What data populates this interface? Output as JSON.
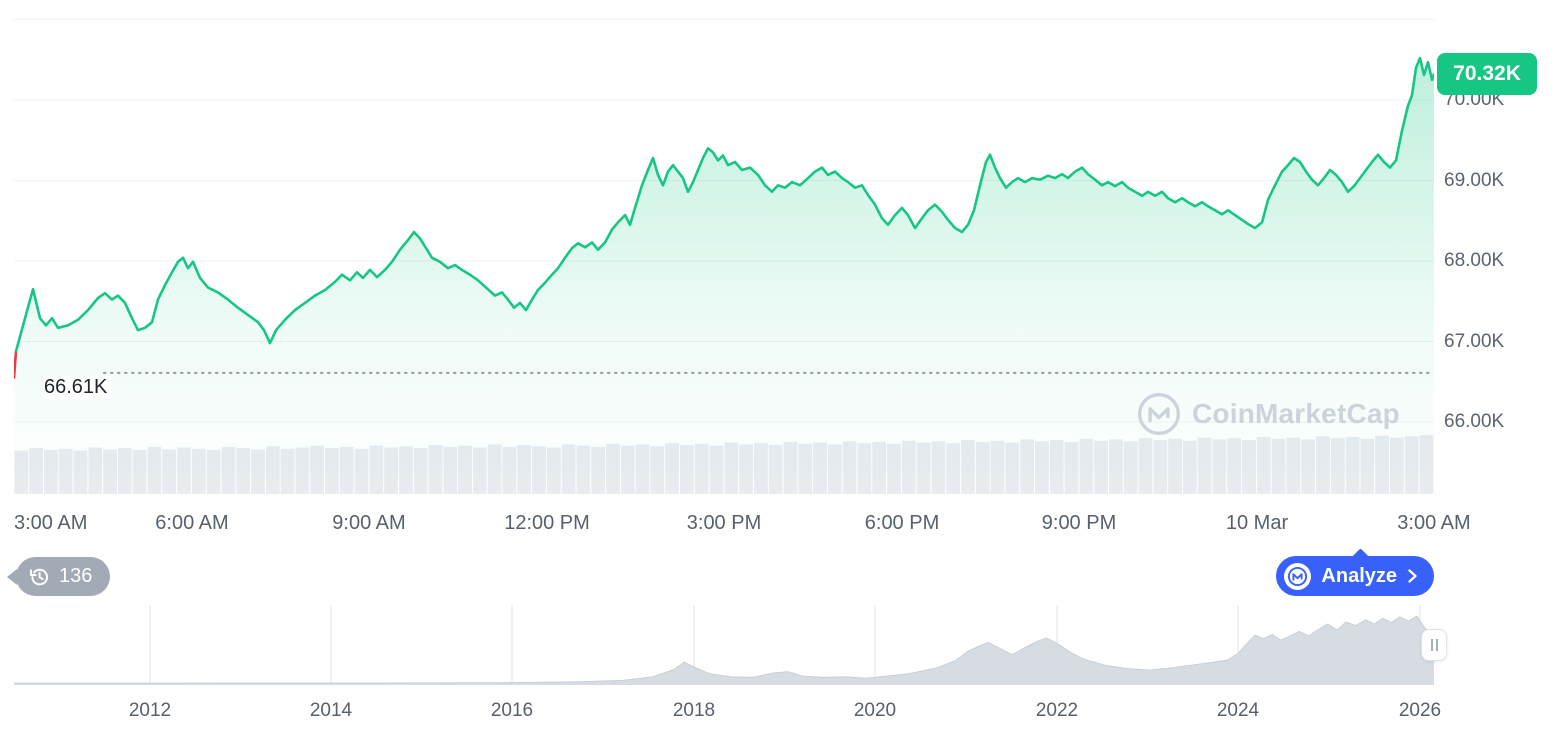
{
  "watermark": {
    "text": "CoinMarketCap"
  },
  "toolbar": {
    "history_count": "136",
    "analyze_label": "Analyze"
  },
  "colors": {
    "accent_green": "#16c784",
    "accent_blue": "#3861fb",
    "accent_red": "#ea3943",
    "volume_gray": "#e8ebef",
    "mini_fill": "#d7dce2",
    "mini_stroke": "#c8cfd7",
    "grid": "#eff2f5",
    "dotted_line": "#8f97a0",
    "axis_text": "#57606d"
  },
  "chart_data": {
    "type": "area",
    "title": "",
    "current_price_label": "70.32K",
    "current_price": 70.32,
    "open_price_label": "66.61K",
    "open_price": 66.61,
    "ylim": [
      65.07,
      71.07
    ],
    "y_ticks": [
      {
        "label": "70.00K",
        "value": 70.0
      },
      {
        "label": "69.00K",
        "value": 69.0
      },
      {
        "label": "68.00K",
        "value": 68.0
      },
      {
        "label": "67.00K",
        "value": 67.0
      },
      {
        "label": "66.00K",
        "value": 66.0
      }
    ],
    "grid_values": [
      71.0,
      70.0,
      69.0,
      68.0,
      67.0,
      66.0
    ],
    "x_ticks": [
      {
        "label": "3:00 AM",
        "fx": 0.0
      },
      {
        "label": "6:00 AM",
        "fx": 0.125
      },
      {
        "label": "9:00 AM",
        "fx": 0.25
      },
      {
        "label": "12:00 PM",
        "fx": 0.375
      },
      {
        "label": "3:00 PM",
        "fx": 0.5
      },
      {
        "label": "6:00 PM",
        "fx": 0.625
      },
      {
        "label": "9:00 PM",
        "fx": 0.75
      },
      {
        "label": "10 Mar",
        "fx": 0.875
      },
      {
        "label": "3:00 AM",
        "fx": 1.0
      }
    ],
    "points": [
      [
        0,
        66.55
      ],
      [
        2,
        66.88
      ],
      [
        19,
        67.65
      ],
      [
        26,
        67.29
      ],
      [
        32,
        67.2
      ],
      [
        38,
        67.29
      ],
      [
        44,
        67.17
      ],
      [
        54,
        67.2
      ],
      [
        64,
        67.27
      ],
      [
        74,
        67.39
      ],
      [
        84,
        67.54
      ],
      [
        91,
        67.6
      ],
      [
        98,
        67.52
      ],
      [
        104,
        67.57
      ],
      [
        111,
        67.48
      ],
      [
        118,
        67.29
      ],
      [
        124,
        67.14
      ],
      [
        131,
        67.17
      ],
      [
        138,
        67.24
      ],
      [
        144,
        67.52
      ],
      [
        151,
        67.7
      ],
      [
        158,
        67.86
      ],
      [
        164,
        67.99
      ],
      [
        169,
        68.04
      ],
      [
        174,
        67.91
      ],
      [
        179,
        67.99
      ],
      [
        186,
        67.79
      ],
      [
        194,
        67.67
      ],
      [
        204,
        67.61
      ],
      [
        214,
        67.52
      ],
      [
        224,
        67.42
      ],
      [
        234,
        67.33
      ],
      [
        244,
        67.24
      ],
      [
        250,
        67.14
      ],
      [
        256,
        66.98
      ],
      [
        262,
        67.14
      ],
      [
        271,
        67.27
      ],
      [
        281,
        67.39
      ],
      [
        291,
        67.48
      ],
      [
        301,
        67.57
      ],
      [
        311,
        67.64
      ],
      [
        321,
        67.74
      ],
      [
        328,
        67.83
      ],
      [
        336,
        67.76
      ],
      [
        343,
        67.86
      ],
      [
        349,
        67.79
      ],
      [
        356,
        67.89
      ],
      [
        363,
        67.8
      ],
      [
        371,
        67.89
      ],
      [
        378,
        67.99
      ],
      [
        386,
        68.14
      ],
      [
        394,
        68.26
      ],
      [
        400,
        68.36
      ],
      [
        406,
        68.28
      ],
      [
        412,
        68.16
      ],
      [
        418,
        68.04
      ],
      [
        426,
        67.99
      ],
      [
        434,
        67.91
      ],
      [
        441,
        67.95
      ],
      [
        448,
        67.89
      ],
      [
        456,
        67.83
      ],
      [
        464,
        67.76
      ],
      [
        472,
        67.67
      ],
      [
        481,
        67.57
      ],
      [
        488,
        67.61
      ],
      [
        494,
        67.52
      ],
      [
        500,
        67.42
      ],
      [
        506,
        67.48
      ],
      [
        512,
        67.39
      ],
      [
        518,
        67.52
      ],
      [
        524,
        67.64
      ],
      [
        531,
        67.73
      ],
      [
        538,
        67.83
      ],
      [
        544,
        67.91
      ],
      [
        551,
        68.04
      ],
      [
        558,
        68.16
      ],
      [
        564,
        68.22
      ],
      [
        571,
        68.17
      ],
      [
        578,
        68.23
      ],
      [
        584,
        68.14
      ],
      [
        591,
        68.23
      ],
      [
        598,
        68.39
      ],
      [
        604,
        68.48
      ],
      [
        611,
        68.57
      ],
      [
        616,
        68.45
      ],
      [
        622,
        68.7
      ],
      [
        628,
        68.94
      ],
      [
        634,
        69.13
      ],
      [
        639,
        69.28
      ],
      [
        644,
        69.07
      ],
      [
        649,
        68.94
      ],
      [
        654,
        69.11
      ],
      [
        659,
        69.19
      ],
      [
        664,
        69.11
      ],
      [
        669,
        69.03
      ],
      [
        674,
        68.86
      ],
      [
        679,
        68.98
      ],
      [
        684,
        69.13
      ],
      [
        689,
        69.28
      ],
      [
        694,
        69.4
      ],
      [
        699,
        69.35
      ],
      [
        704,
        69.25
      ],
      [
        709,
        69.31
      ],
      [
        714,
        69.19
      ],
      [
        721,
        69.23
      ],
      [
        728,
        69.13
      ],
      [
        736,
        69.16
      ],
      [
        744,
        69.07
      ],
      [
        751,
        68.94
      ],
      [
        758,
        68.86
      ],
      [
        764,
        68.94
      ],
      [
        771,
        68.91
      ],
      [
        778,
        68.98
      ],
      [
        786,
        68.94
      ],
      [
        794,
        69.03
      ],
      [
        801,
        69.11
      ],
      [
        808,
        69.16
      ],
      [
        814,
        69.07
      ],
      [
        821,
        69.11
      ],
      [
        828,
        69.03
      ],
      [
        834,
        68.98
      ],
      [
        841,
        68.91
      ],
      [
        848,
        68.94
      ],
      [
        854,
        68.82
      ],
      [
        861,
        68.7
      ],
      [
        868,
        68.53
      ],
      [
        874,
        68.45
      ],
      [
        881,
        68.57
      ],
      [
        888,
        68.66
      ],
      [
        894,
        68.57
      ],
      [
        901,
        68.41
      ],
      [
        908,
        68.53
      ],
      [
        914,
        68.63
      ],
      [
        921,
        68.7
      ],
      [
        928,
        68.61
      ],
      [
        934,
        68.51
      ],
      [
        941,
        68.41
      ],
      [
        948,
        68.36
      ],
      [
        954,
        68.45
      ],
      [
        960,
        68.63
      ],
      [
        966,
        68.94
      ],
      [
        972,
        69.23
      ],
      [
        976,
        69.32
      ],
      [
        981,
        69.16
      ],
      [
        986,
        69.03
      ],
      [
        992,
        68.91
      ],
      [
        998,
        68.98
      ],
      [
        1004,
        69.03
      ],
      [
        1011,
        68.98
      ],
      [
        1018,
        69.03
      ],
      [
        1026,
        69.01
      ],
      [
        1034,
        69.06
      ],
      [
        1041,
        69.03
      ],
      [
        1048,
        69.08
      ],
      [
        1054,
        69.03
      ],
      [
        1061,
        69.11
      ],
      [
        1068,
        69.16
      ],
      [
        1074,
        69.08
      ],
      [
        1081,
        69.01
      ],
      [
        1088,
        68.94
      ],
      [
        1094,
        68.98
      ],
      [
        1101,
        68.93
      ],
      [
        1108,
        68.98
      ],
      [
        1114,
        68.91
      ],
      [
        1121,
        68.86
      ],
      [
        1128,
        68.81
      ],
      [
        1134,
        68.86
      ],
      [
        1141,
        68.81
      ],
      [
        1148,
        68.86
      ],
      [
        1154,
        68.78
      ],
      [
        1161,
        68.73
      ],
      [
        1168,
        68.78
      ],
      [
        1174,
        68.73
      ],
      [
        1181,
        68.68
      ],
      [
        1188,
        68.73
      ],
      [
        1194,
        68.68
      ],
      [
        1201,
        68.63
      ],
      [
        1208,
        68.58
      ],
      [
        1214,
        68.63
      ],
      [
        1221,
        68.57
      ],
      [
        1228,
        68.51
      ],
      [
        1234,
        68.46
      ],
      [
        1241,
        68.41
      ],
      [
        1248,
        68.48
      ],
      [
        1254,
        68.76
      ],
      [
        1261,
        68.94
      ],
      [
        1268,
        69.11
      ],
      [
        1274,
        69.19
      ],
      [
        1280,
        69.28
      ],
      [
        1286,
        69.23
      ],
      [
        1292,
        69.11
      ],
      [
        1298,
        69.01
      ],
      [
        1304,
        68.94
      ],
      [
        1310,
        69.03
      ],
      [
        1316,
        69.13
      ],
      [
        1322,
        69.07
      ],
      [
        1328,
        68.98
      ],
      [
        1334,
        68.86
      ],
      [
        1340,
        68.93
      ],
      [
        1346,
        69.03
      ],
      [
        1352,
        69.13
      ],
      [
        1358,
        69.23
      ],
      [
        1364,
        69.32
      ],
      [
        1370,
        69.23
      ],
      [
        1376,
        69.16
      ],
      [
        1382,
        69.25
      ],
      [
        1388,
        69.62
      ],
      [
        1394,
        69.93
      ],
      [
        1398,
        70.06
      ],
      [
        1402,
        70.4
      ],
      [
        1406,
        70.52
      ],
      [
        1410,
        70.31
      ],
      [
        1414,
        70.47
      ],
      [
        1418,
        70.25
      ],
      [
        1420,
        70.32
      ]
    ],
    "volume": [
      0.7,
      0.74,
      0.71,
      0.73,
      0.7,
      0.75,
      0.72,
      0.74,
      0.71,
      0.76,
      0.72,
      0.75,
      0.73,
      0.71,
      0.76,
      0.74,
      0.72,
      0.77,
      0.73,
      0.75,
      0.78,
      0.74,
      0.76,
      0.73,
      0.78,
      0.75,
      0.77,
      0.74,
      0.79,
      0.76,
      0.78,
      0.75,
      0.8,
      0.76,
      0.79,
      0.77,
      0.75,
      0.8,
      0.78,
      0.76,
      0.81,
      0.78,
      0.8,
      0.77,
      0.82,
      0.79,
      0.81,
      0.78,
      0.83,
      0.8,
      0.82,
      0.79,
      0.84,
      0.81,
      0.83,
      0.8,
      0.85,
      0.82,
      0.84,
      0.81,
      0.86,
      0.83,
      0.85,
      0.82,
      0.87,
      0.84,
      0.86,
      0.83,
      0.88,
      0.85,
      0.87,
      0.84,
      0.89,
      0.86,
      0.88,
      0.85,
      0.9,
      0.87,
      0.89,
      0.86,
      0.91,
      0.88,
      0.9,
      0.87,
      0.92,
      0.89,
      0.91,
      0.88,
      0.93,
      0.9,
      0.92,
      0.89,
      0.94,
      0.91,
      0.93,
      0.95
    ],
    "mini": {
      "type": "area",
      "x_ticks": [
        {
          "label": "2012",
          "fx": 0.0958
        },
        {
          "label": "2014",
          "fx": 0.2232
        },
        {
          "label": "2016",
          "fx": 0.3507
        },
        {
          "label": "2018",
          "fx": 0.4789
        },
        {
          "label": "2020",
          "fx": 0.6063
        },
        {
          "label": "2022",
          "fx": 0.7345
        },
        {
          "label": "2024",
          "fx": 0.862
        },
        {
          "label": "2026",
          "fx": 0.9901
        }
      ],
      "points": [
        [
          0,
          0.012
        ],
        [
          0.1,
          0.012
        ],
        [
          0.2,
          0.014
        ],
        [
          0.3,
          0.015
        ],
        [
          0.36,
          0.02
        ],
        [
          0.4,
          0.03
        ],
        [
          0.43,
          0.05
        ],
        [
          0.45,
          0.1
        ],
        [
          0.465,
          0.2
        ],
        [
          0.472,
          0.3
        ],
        [
          0.478,
          0.24
        ],
        [
          0.49,
          0.14
        ],
        [
          0.505,
          0.1
        ],
        [
          0.52,
          0.09
        ],
        [
          0.535,
          0.15
        ],
        [
          0.545,
          0.17
        ],
        [
          0.555,
          0.11
        ],
        [
          0.57,
          0.09
        ],
        [
          0.585,
          0.1
        ],
        [
          0.6,
          0.08
        ],
        [
          0.615,
          0.11
        ],
        [
          0.63,
          0.14
        ],
        [
          0.65,
          0.22
        ],
        [
          0.663,
          0.32
        ],
        [
          0.672,
          0.45
        ],
        [
          0.68,
          0.52
        ],
        [
          0.686,
          0.57
        ],
        [
          0.695,
          0.48
        ],
        [
          0.703,
          0.4
        ],
        [
          0.712,
          0.5
        ],
        [
          0.72,
          0.58
        ],
        [
          0.727,
          0.63
        ],
        [
          0.735,
          0.55
        ],
        [
          0.745,
          0.42
        ],
        [
          0.755,
          0.33
        ],
        [
          0.77,
          0.25
        ],
        [
          0.785,
          0.21
        ],
        [
          0.8,
          0.19
        ],
        [
          0.815,
          0.22
        ],
        [
          0.83,
          0.26
        ],
        [
          0.845,
          0.3
        ],
        [
          0.855,
          0.33
        ],
        [
          0.862,
          0.42
        ],
        [
          0.868,
          0.55
        ],
        [
          0.874,
          0.67
        ],
        [
          0.88,
          0.62
        ],
        [
          0.886,
          0.68
        ],
        [
          0.892,
          0.6
        ],
        [
          0.898,
          0.65
        ],
        [
          0.905,
          0.72
        ],
        [
          0.912,
          0.66
        ],
        [
          0.918,
          0.74
        ],
        [
          0.925,
          0.82
        ],
        [
          0.932,
          0.74
        ],
        [
          0.938,
          0.85
        ],
        [
          0.945,
          0.8
        ],
        [
          0.952,
          0.88
        ],
        [
          0.958,
          0.82
        ],
        [
          0.964,
          0.9
        ],
        [
          0.97,
          0.84
        ],
        [
          0.976,
          0.92
        ],
        [
          0.982,
          0.86
        ],
        [
          0.988,
          0.93
        ],
        [
          0.993,
          0.78
        ],
        [
          0.997,
          0.7
        ],
        [
          1,
          0.75
        ]
      ]
    }
  }
}
